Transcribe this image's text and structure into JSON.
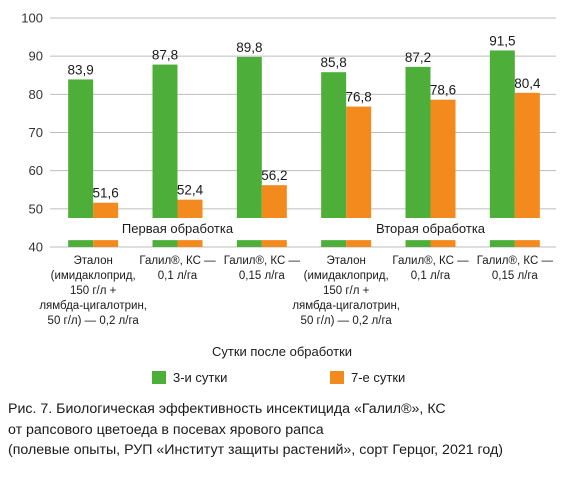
{
  "chart_data": {
    "type": "bar",
    "ylim": [
      40,
      100
    ],
    "yticks": [
      40,
      50,
      60,
      70,
      80,
      90,
      100
    ],
    "grid": "horizontal",
    "categories": [
      [
        "Эталон",
        "(имидаклоприд,",
        "150 г/л +",
        "лямбда-цигалотрин,",
        "50 г/л) — 0,2 л/га"
      ],
      [
        "Галил®, КС —",
        "0,1 л/га"
      ],
      [
        "Галил®, КС —",
        "0,15 л/га"
      ],
      [
        "Эталон",
        "(имидаклоприд,",
        "150 г/л +",
        "лямбда-цигалотрин,",
        "50 г/л) — 0,2 л/га"
      ],
      [
        "Галил®, КС —",
        "0,1 л/га"
      ],
      [
        "Галил®, КС —",
        "0,15 л/га"
      ]
    ],
    "groups": [
      "Первая обработка",
      "Вторая обработка"
    ],
    "series": [
      {
        "name": "3-и сутки",
        "color": "#4daf3a",
        "values": [
          83.9,
          87.8,
          89.8,
          85.8,
          87.2,
          91.5
        ],
        "labels": [
          "83,9",
          "87,8",
          "89,8",
          "85,8",
          "87,2",
          "91,5"
        ]
      },
      {
        "name": "7-е сутки",
        "color": "#f28a1d",
        "values": [
          51.6,
          52.4,
          56.2,
          76.8,
          78.6,
          80.4
        ],
        "labels": [
          "51,6",
          "52,4",
          "56,2",
          "76,8",
          "78,6",
          "80,4"
        ]
      }
    ],
    "xlabel": "Сутки после обработки",
    "ylabel": "",
    "legend_position": "bottom"
  },
  "caption": [
    "Рис. 7. Биологическая эффективность инсектицида «Галил®», КС",
    "от рапсового цветоеда в посевах ярового рапса",
    "(полевые опыты, РУП «Институт защиты растений», сорт Герцог, 2021 год)"
  ]
}
